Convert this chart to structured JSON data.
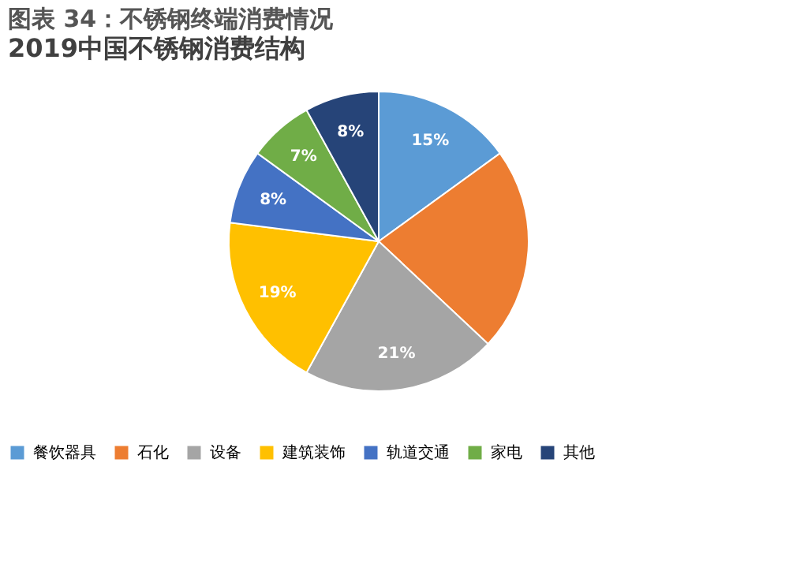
{
  "chart_data": {
    "type": "pie",
    "title": "图表 34：不锈钢终端消费情况",
    "subtitle": "2019中国不锈钢消费结构",
    "categories": [
      "餐饮器具",
      "石化",
      "设备",
      "建筑装饰",
      "轨道交通",
      "家电",
      "其他"
    ],
    "values": [
      15,
      22,
      21,
      19,
      8,
      7,
      8
    ],
    "value_labels": [
      "15%",
      null,
      "21%",
      "19%",
      "8%",
      "7%",
      "8%"
    ],
    "colors": [
      "#5b9bd5",
      "#ed7d31",
      "#a5a5a5",
      "#ffc000",
      "#4472c4",
      "#70ad47",
      "#264478"
    ],
    "legend": "bottom"
  }
}
